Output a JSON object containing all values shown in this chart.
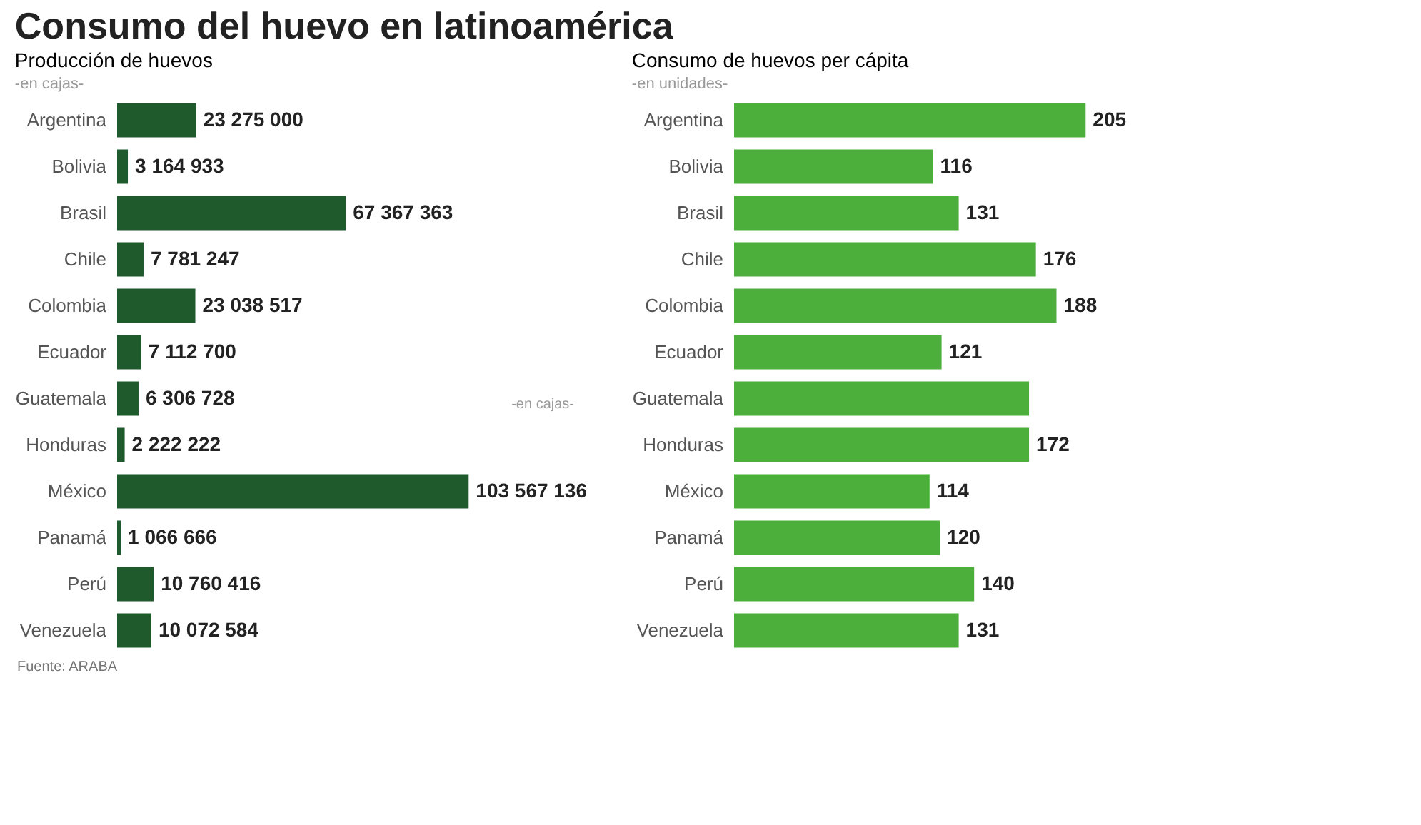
{
  "chart_data": [
    {
      "type": "bar",
      "orientation": "horizontal",
      "title": "Consumo del huevo en latinoamérica",
      "subtitle": "Producción de huevos",
      "categories": [
        "Argentina",
        "Bolivia",
        "Brasil",
        "Chile",
        "Colombia",
        "Ecuador",
        "Guatemala",
        "Honduras",
        "México",
        "Panamá",
        "Perú",
        "Venezuela"
      ],
      "values": [
        23275000,
        3164933,
        67367363,
        7781247,
        23038517,
        7112700,
        6306728,
        2222222,
        103567136,
        1066666,
        10760416,
        10072584
      ],
      "value_labels": [
        "23 275 000",
        "3 164 933",
        "67 367 363",
        "7 781 247",
        "23 038 517",
        "7 112 700",
        "6 306 728",
        "2 222 222",
        "103 567 136",
        "1 066 666",
        "10 760 416",
        "10 072 584"
      ],
      "color": "#1e5a2c",
      "legend": false,
      "annotations": [
        "-en cajas-",
        "-en cajas-",
        "Fuente: ARABA"
      ]
    },
    {
      "type": "bar",
      "orientation": "horizontal",
      "subtitle": "Consumo de huevos per cápita",
      "categories": [
        "Argentina",
        "Bolivia",
        "Brasil",
        "Chile",
        "Colombia",
        "Ecuador",
        "Guatemala",
        "Honduras",
        "México",
        "Panamá",
        "Perú",
        "Venezuela"
      ],
      "values": [
        205,
        116,
        131,
        176,
        188,
        121,
        172,
        172,
        114,
        120,
        140,
        131
      ],
      "value_labels": [
        "205",
        "116",
        "131",
        "176",
        "188",
        "121",
        null,
        "172",
        "114",
        "120",
        "140",
        "131"
      ],
      "color": "#4caf3c",
      "legend": false,
      "annotations": [
        "-en unidades-"
      ]
    }
  ]
}
